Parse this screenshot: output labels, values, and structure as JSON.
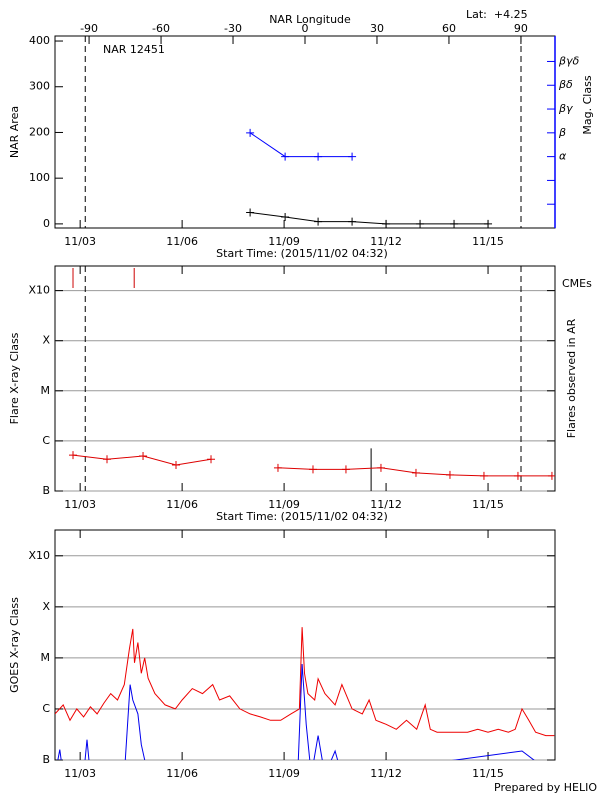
{
  "chart_data": [
    {
      "type": "line",
      "title": "NAR 12451",
      "annotation": "Lat:  +4.25",
      "x_label": "Start Time: (2015/11/02 04:32)",
      "y_label": "NAR Area",
      "y2_label": "Mag. Class",
      "x2_label": "NAR Longitude",
      "xlim": [
        2.26,
        16.97
      ],
      "xticks": [
        {
          "value": 3,
          "label": "11/03"
        },
        {
          "value": 6,
          "label": "11/06"
        },
        {
          "value": 9,
          "label": "11/09"
        },
        {
          "value": 12,
          "label": "11/12"
        },
        {
          "value": 15,
          "label": "11/15"
        }
      ],
      "x2lim": [
        -104.2,
        104.2
      ],
      "x2ticks": [
        -90,
        -60,
        -30,
        0,
        30,
        60,
        90
      ],
      "ylim": [
        -9,
        411
      ],
      "yticks": [
        0,
        100,
        200,
        300,
        400
      ],
      "y2lim": [
        0,
        8.07
      ],
      "y2color": "#0000ff",
      "y2ticks": [
        {
          "value": 1,
          "label": null
        },
        {
          "value": 2,
          "label": null
        },
        {
          "value": 3,
          "label": "α"
        },
        {
          "value": 4,
          "label": "β"
        },
        {
          "value": 5,
          "label": "βγ"
        },
        {
          "value": 6,
          "label": "βδ"
        },
        {
          "value": 7,
          "label": "βγδ"
        }
      ],
      "vlines": [
        3.15,
        15.97
      ],
      "grid": false,
      "series": [
        {
          "color": "#000000",
          "marker": "plus",
          "x": [
            8.0,
            9.03,
            10.0,
            11.0,
            12.0,
            13.0,
            14.0,
            15.0
          ],
          "values": [
            25,
            15,
            5,
            5,
            0,
            0,
            0,
            0
          ]
        },
        {
          "color": "#0000ff",
          "marker": "plus",
          "axis": "y2",
          "x": [
            8.0,
            9.03,
            10.0,
            11.0
          ],
          "values": [
            4,
            3,
            3,
            3
          ]
        }
      ]
    },
    {
      "type": "line",
      "x_label": "Start Time: (2015/11/02 04:32)",
      "y_label": "Flare X-ray Class",
      "y2_label": "Flares observed in AR",
      "right_label": "CMEs",
      "right_label_color": "#cc0000",
      "xlim": [
        2.26,
        16.97
      ],
      "xticks": [
        {
          "value": 3,
          "label": "11/03"
        },
        {
          "value": 6,
          "label": "11/06"
        },
        {
          "value": 9,
          "label": "11/09"
        },
        {
          "value": 12,
          "label": "11/12"
        },
        {
          "value": 15,
          "label": "11/15"
        }
      ],
      "log": true,
      "ylim": [
        1e-07,
        0.0031
      ],
      "yticks": [
        {
          "value": 1e-07,
          "label": "B"
        },
        {
          "value": 1e-06,
          "label": "C"
        },
        {
          "value": 1e-05,
          "label": "M"
        },
        {
          "value": 0.0001,
          "label": "X"
        },
        {
          "value": 0.001,
          "label": "X10"
        }
      ],
      "vlines": [
        3.15,
        15.97
      ],
      "grid": true,
      "cme_times": [
        2.79,
        4.59
      ],
      "event_lines": [
        {
          "x": 11.56,
          "value": 7.1e-07
        }
      ],
      "series": [
        {
          "color": "#dd0000",
          "marker": "plus",
          "x": [
            2.79,
            3.79,
            4.85,
            5.82,
            6.85,
            null,
            8.82,
            9.85,
            10.82,
            11.85,
            12.88,
            13.88,
            14.88,
            15.88,
            16.88
          ],
          "values": [
            5.2e-07,
            4.3e-07,
            5e-07,
            3.3e-07,
            4.3e-07,
            null,
            2.9e-07,
            2.7e-07,
            2.7e-07,
            2.9e-07,
            2.3e-07,
            2.1e-07,
            2e-07,
            2e-07,
            2e-07
          ]
        }
      ]
    },
    {
      "type": "line",
      "y_label": "GOES X-ray Class",
      "footer": "Prepared by HELIO",
      "xlim": [
        2.26,
        16.97
      ],
      "xticks": [
        {
          "value": 3,
          "label": "11/03"
        },
        {
          "value": 6,
          "label": "11/06"
        },
        {
          "value": 9,
          "label": "11/09"
        },
        {
          "value": 12,
          "label": "11/12"
        },
        {
          "value": 15,
          "label": "11/15"
        }
      ],
      "log": true,
      "ylim": [
        1e-07,
        0.0032
      ],
      "yticks": [
        {
          "value": 1e-07,
          "label": "B"
        },
        {
          "value": 1e-06,
          "label": "C"
        },
        {
          "value": 1e-05,
          "label": "M"
        },
        {
          "value": 0.0001,
          "label": "X"
        },
        {
          "value": 0.001,
          "label": "X10"
        }
      ],
      "grid": true,
      "series": [
        {
          "color": "#ee0000",
          "x": [
            2.26,
            2.5,
            2.7,
            2.9,
            3.1,
            3.3,
            3.5,
            3.7,
            3.9,
            4.1,
            4.3,
            4.45,
            4.55,
            4.6,
            4.7,
            4.8,
            4.9,
            5.0,
            5.2,
            5.5,
            5.8,
            6.0,
            6.3,
            6.6,
            6.9,
            7.1,
            7.4,
            7.7,
            8.0,
            8.3,
            8.6,
            8.9,
            9.2,
            9.45,
            9.53,
            9.6,
            9.7,
            9.9,
            10.0,
            10.2,
            10.5,
            10.7,
            11.0,
            11.3,
            11.5,
            11.7,
            12.0,
            12.3,
            12.6,
            12.9,
            13.15,
            13.3,
            13.5,
            13.8,
            14.1,
            14.4,
            14.7,
            15.0,
            15.3,
            15.6,
            15.8,
            16.0,
            16.2,
            16.4,
            16.7,
            16.95
          ],
          "values": [
            8e-07,
            1.2e-06,
            6e-07,
            1e-06,
            7e-07,
            1.1e-06,
            8e-07,
            1.3e-06,
            2e-06,
            1.5e-06,
            3e-06,
            1.5e-05,
            3.7e-05,
            8e-06,
            2e-05,
            5e-06,
            1e-05,
            4e-06,
            2e-06,
            1.2e-06,
            1e-06,
            1.5e-06,
            2.5e-06,
            2e-06,
            3e-06,
            1.5e-06,
            1.8e-06,
            1e-06,
            8e-07,
            7e-07,
            6e-07,
            6e-07,
            8e-07,
            1e-06,
            4e-05,
            5e-06,
            2e-06,
            1.5e-06,
            3.9e-06,
            2e-06,
            1.2e-06,
            3e-06,
            1e-06,
            8e-07,
            1.5e-06,
            6e-07,
            5e-07,
            4e-07,
            6e-07,
            4e-07,
            1.2e-06,
            4e-07,
            3.5e-07,
            3.5e-07,
            3.5e-07,
            3.5e-07,
            4e-07,
            3.5e-07,
            4e-07,
            3.5e-07,
            4e-07,
            1e-06,
            6e-07,
            3.5e-07,
            3e-07,
            3e-07
          ]
        },
        {
          "color": "#0000ee",
          "x": [
            2.26,
            2.4,
            2.5,
            3.1,
            3.2,
            3.3,
            4.3,
            4.47,
            4.55,
            4.7,
            4.8,
            5.0,
            9.4,
            9.53,
            9.65,
            9.8,
            10.0,
            10.2,
            10.5,
            10.7,
            16.0,
            16.95
          ],
          "values": [
            5e-08,
            1.6e-07,
            5e-08,
            5e-08,
            2.5e-07,
            5e-08,
            5e-08,
            3e-06,
            1.5e-06,
            8e-07,
            2e-07,
            5e-08,
            5e-08,
            7.6e-06,
            5e-07,
            5e-08,
            3e-07,
            5e-08,
            1.5e-07,
            5e-08,
            1.5e-07,
            5e-08
          ]
        }
      ]
    }
  ]
}
